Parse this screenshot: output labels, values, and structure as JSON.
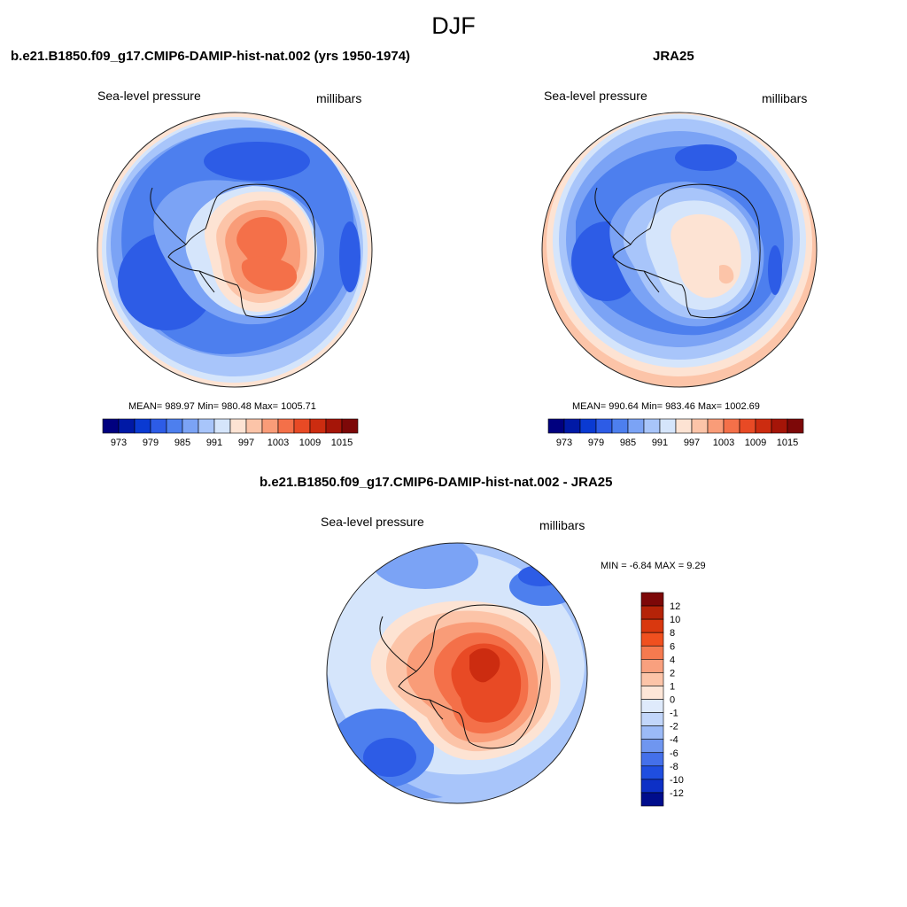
{
  "figure": {
    "title": "DJF"
  },
  "panels": [
    {
      "title": "b.e21.B1850.f09_g17.CMIP6-DAMIP-hist-nat.002 (yrs 1950-1974)",
      "variable": "Sea-level pressure",
      "units": "millibars",
      "stats": "MEAN= 989.97  Min= 980.48  Max= 1005.71"
    },
    {
      "title": "JRA25",
      "variable": "Sea-level pressure",
      "units": "millibars",
      "stats": "MEAN= 990.64  Min= 983.46  Max= 1002.69"
    },
    {
      "title": "b.e21.B1850.f09_g17.CMIP6-DAMIP-hist-nat.002 - JRA25",
      "variable": "Sea-level pressure",
      "units": "millibars",
      "stats": "MIN =  -6.84 MAX =   9.29"
    }
  ],
  "colorbars": {
    "abs": {
      "labels": [
        "973",
        "979",
        "985",
        "991",
        "997",
        "1003",
        "1009",
        "1015"
      ],
      "colors": [
        "#00007f",
        "#0019a6",
        "#0a3ad2",
        "#2d5ce6",
        "#4d7fee",
        "#7ba3f5",
        "#a8c5fa",
        "#d5e5fb",
        "#fde3d3",
        "#fcc4a8",
        "#f99c78",
        "#f47049",
        "#e84a25",
        "#cc2c10",
        "#a51508",
        "#7d0808"
      ]
    },
    "diff": {
      "labels": [
        "12",
        "10",
        "8",
        "6",
        "4",
        "2",
        "1",
        "0",
        "-1",
        "-2",
        "-4",
        "-6",
        "-8",
        "-10",
        "-12"
      ],
      "colors": [
        "#7d0808",
        "#b52308",
        "#d9380f",
        "#f0501f",
        "#f57a4f",
        "#f9a07e",
        "#fcc4a8",
        "#fde6d8",
        "#dfeafb",
        "#c2d6fa",
        "#9bbaf7",
        "#6f96f0",
        "#4470ea",
        "#1f4ee0",
        "#0d30c6",
        "#000d8c"
      ]
    }
  },
  "map_colors": {
    "deep_blue": "#2d5ce6",
    "mid_blue": "#4d7fee",
    "light_blue": "#7ba3f5",
    "pale_blue": "#a8c5fa",
    "faint_blue": "#d5e5fb",
    "faint_orange": "#fde3d3",
    "light_orange": "#fcc4a8",
    "orange": "#f99c78",
    "dark_orange": "#f47049",
    "red": "#e84a25",
    "dark_red": "#cc2c10"
  }
}
